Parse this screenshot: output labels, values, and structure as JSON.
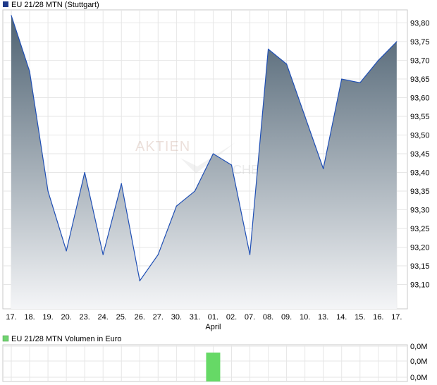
{
  "price_chart": {
    "legend_label": "EU 21/28 MTN (Stuttgart)",
    "legend_color": "#1f3a8a",
    "line_color": "#1f4fb5",
    "fill_top": "#4e6272",
    "fill_bottom": "#f4f5f7",
    "watermark_text": "AKTIEN",
    "watermark_text2": "CHECK",
    "chart_data": {
      "type": "area",
      "x": [
        "17.",
        "18.",
        "19.",
        "20.",
        "23.",
        "24.",
        "25.",
        "26.",
        "27.",
        "30.",
        "31.",
        "01.",
        "02.",
        "07.",
        "08.",
        "09.",
        "10.",
        "13.",
        "14.",
        "15.",
        "16.",
        "17."
      ],
      "month_marker": {
        "index": 11,
        "label": "April"
      },
      "values": [
        93.82,
        93.67,
        93.35,
        93.19,
        93.4,
        93.18,
        93.37,
        93.11,
        93.18,
        93.31,
        93.35,
        93.45,
        93.42,
        93.18,
        93.73,
        93.69,
        93.55,
        93.41,
        93.65,
        93.64,
        93.7,
        93.75
      ],
      "ylim": [
        93.035,
        93.835
      ],
      "y_ticks": [
        93.1,
        93.15,
        93.2,
        93.25,
        93.3,
        93.35,
        93.4,
        93.45,
        93.5,
        93.55,
        93.6,
        93.65,
        93.7,
        93.75,
        93.8
      ],
      "y_tick_labels": [
        "93,10",
        "93,15",
        "93,20",
        "93,25",
        "93,30",
        "93,35",
        "93,40",
        "93,45",
        "93,50",
        "93,55",
        "93,60",
        "93,65",
        "93,70",
        "93,75",
        "93,80"
      ],
      "grid": true,
      "legend": "top-left"
    }
  },
  "volume_chart": {
    "legend_label": "EU 21/28 MTN Volumen in Euro",
    "legend_color": "#6fd36f",
    "bar_color": "#66d966",
    "chart_data": {
      "type": "bar",
      "bar_index": 11,
      "y_tick_labels": [
        "0,0M",
        "0,0M",
        "0,0M"
      ],
      "grid": true,
      "legend": "top-left"
    }
  }
}
